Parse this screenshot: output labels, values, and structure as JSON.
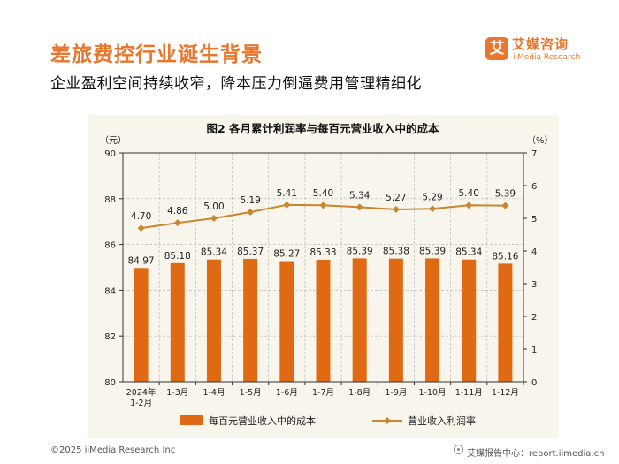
{
  "header": {
    "title": "差旅费控行业诞生背景",
    "subtitle": "企业盈利空间持续收窄，降本压力倒逼费用管理精细化"
  },
  "logo": {
    "mark": "艾",
    "name_cn": "艾媒咨询",
    "name_en": "iiMedia Research"
  },
  "footer": {
    "copyright": "©2025  iiMedia Research  Inc",
    "source": "艾媒报告中心：report.iimedia.cn"
  },
  "colors": {
    "accent": "#E8762C",
    "bar": "#E06A14",
    "line": "#C8862E",
    "figure_bg": "#F8F5EC"
  },
  "chart_data": {
    "type": "bar",
    "title": "图2  各月累计利润率与每百元营业收入中的成本",
    "left_unit": "（元）",
    "right_unit": "（%）",
    "categories": [
      [
        "2024年",
        "1-2月"
      ],
      [
        "1-3月"
      ],
      [
        "1-4月"
      ],
      [
        "1-5月"
      ],
      [
        "1-6月"
      ],
      [
        "1-7月"
      ],
      [
        "1-8月"
      ],
      [
        "1-9月"
      ],
      [
        "1-10月"
      ],
      [
        "1-11月"
      ],
      [
        "1-12月"
      ]
    ],
    "y_left": {
      "ticks": [
        "80",
        "82",
        "84",
        "86",
        "88",
        "90"
      ],
      "range": [
        80,
        90
      ]
    },
    "y_right": {
      "ticks": [
        "0",
        "1",
        "2",
        "3",
        "4",
        "5",
        "6",
        "7"
      ],
      "range": [
        0,
        7
      ]
    },
    "grid": true,
    "legend_position": "bottom",
    "series": [
      {
        "name": "每百元营业收入中的成本",
        "type": "bar",
        "axis": "left",
        "values": [
          84.97,
          85.18,
          85.34,
          85.37,
          85.27,
          85.33,
          85.39,
          85.38,
          85.39,
          85.34,
          85.16
        ],
        "labels": [
          "84.97",
          "85.18",
          "85.34",
          "85.37",
          "85.27",
          "85.33",
          "85.39",
          "85.38",
          "85.39",
          "85.34",
          "85.16"
        ]
      },
      {
        "name": "营业收入利润率",
        "type": "line",
        "axis": "right",
        "values": [
          4.7,
          4.86,
          5.0,
          5.19,
          5.41,
          5.4,
          5.34,
          5.27,
          5.29,
          5.4,
          5.39
        ],
        "labels": [
          "4.70",
          "4.86",
          "5.00",
          "5.19",
          "5.41",
          "5.40",
          "5.34",
          "5.27",
          "5.29",
          "5.40",
          "5.39"
        ]
      }
    ]
  }
}
